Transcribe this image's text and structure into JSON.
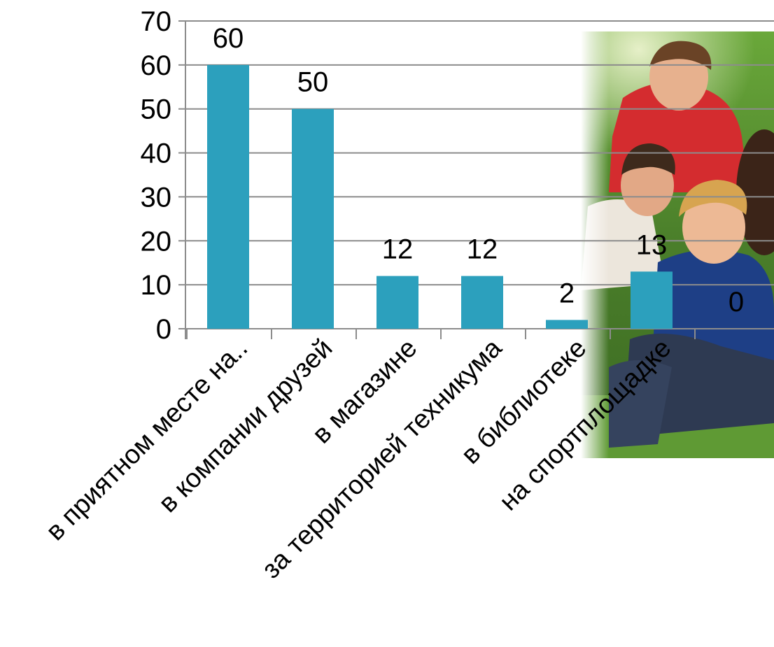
{
  "chart_data": {
    "type": "bar",
    "categories": [
      "в приятном месте на..",
      "в компании друзей",
      "в магазине",
      "за территорией техникума",
      "в библиотеке",
      "на спортплощадке",
      ""
    ],
    "values": [
      60,
      50,
      12,
      12,
      2,
      13,
      0
    ],
    "data_labels": [
      "60",
      "50",
      "12",
      "12",
      "2",
      "13",
      "0"
    ],
    "yticks": [
      "0",
      "10",
      "20",
      "30",
      "40",
      "50",
      "60",
      "70"
    ],
    "ylim": [
      0,
      70
    ],
    "grid": true,
    "bar_color": "#2ca0bd",
    "title": "",
    "xlabel": "",
    "ylabel": ""
  },
  "photo": {
    "description_icon": "group-of-teenagers-photo"
  }
}
